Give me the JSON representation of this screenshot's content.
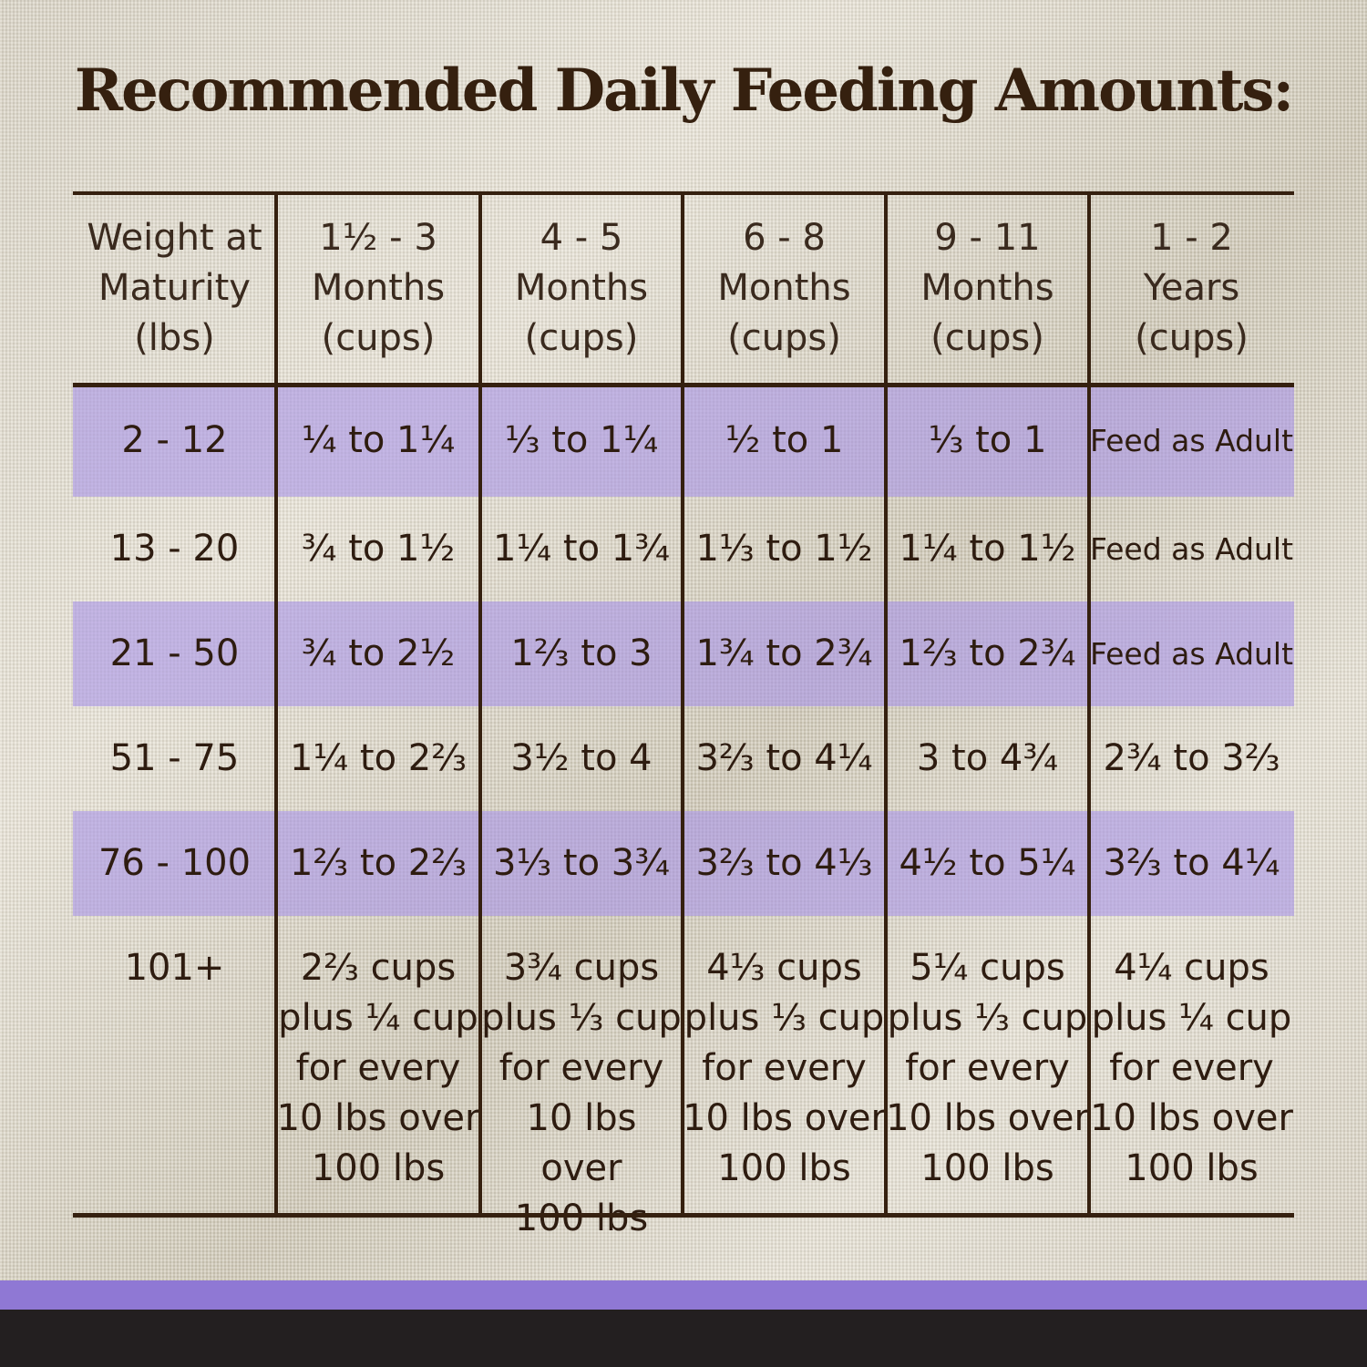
{
  "title": "Recommended Daily Feeding Amounts:",
  "colors": {
    "text": "#35200f",
    "row_shade": "#b4a3e6",
    "band": "#8f78d4",
    "footer": "#231f20"
  },
  "table": {
    "headers": [
      "Weight at\nMaturity\n(lbs)",
      "1½ - 3\nMonths\n(cups)",
      "4 - 5\nMonths\n(cups)",
      "6 - 8\nMonths\n(cups)",
      "9 - 11\nMonths\n(cups)",
      "1 - 2\nYears\n(cups)"
    ],
    "rows": [
      [
        "2 - 12",
        "¼ to 1¼",
        "⅓ to 1¼",
        "½ to 1",
        "⅓ to 1",
        "Feed as Adult"
      ],
      [
        "13 - 20",
        "¾ to 1½",
        "1¼ to 1¾",
        "1⅓ to 1½",
        "1¼ to 1½",
        "Feed as Adult"
      ],
      [
        "21 - 50",
        "¾ to 2½",
        "1⅔ to 3",
        "1¾ to 2¾",
        "1⅔ to 2¾",
        "Feed as Adult"
      ],
      [
        "51 - 75",
        "1¼ to 2⅔",
        "3½ to 4",
        "3⅔ to 4¼",
        "3 to 4¾",
        "2¾ to 3⅔"
      ],
      [
        "76 - 100",
        "1⅔ to 2⅔",
        "3⅓ to 3¾",
        "3⅔ to 4⅓",
        "4½ to 5¼",
        "3⅔ to 4¼"
      ],
      [
        "101+",
        "2⅔ cups\nplus ¼ cup\nfor every\n10 lbs over\n100 lbs",
        "3¾ cups\nplus ⅓ cup\nfor every\n10 lbs over\n100 lbs",
        "4⅓ cups\nplus ⅓ cup\nfor every\n10 lbs over\n100 lbs",
        "5¼ cups\nplus ⅓ cup\nfor every\n10 lbs over\n100 lbs",
        "4¼ cups\nplus ¼ cup\nfor every\n10 lbs over\n100 lbs"
      ]
    ]
  }
}
